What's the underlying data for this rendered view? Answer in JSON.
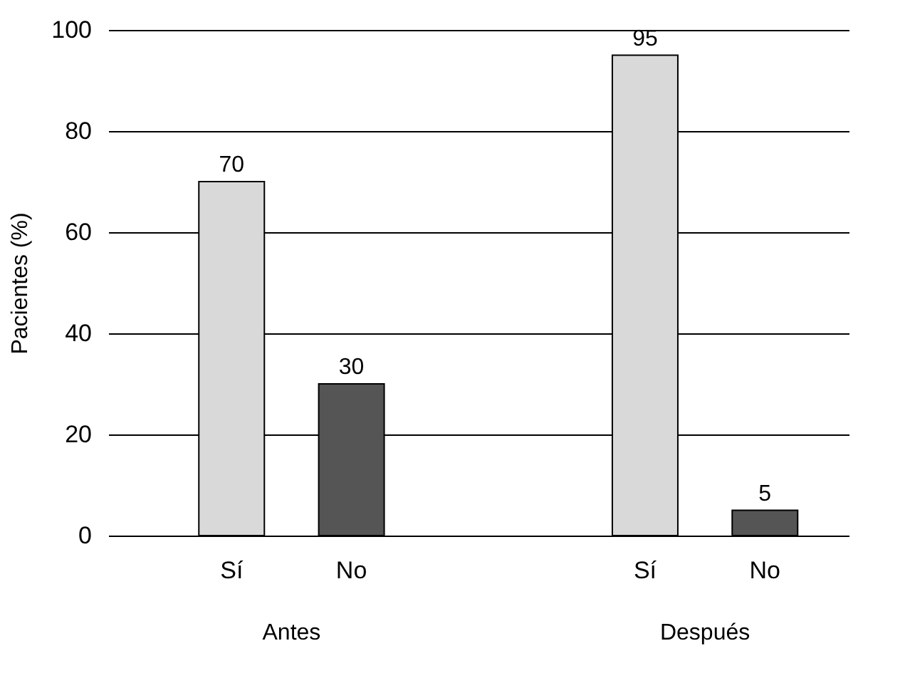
{
  "chart_data": {
    "type": "bar",
    "ylabel": "Pacientes (%)",
    "categories": [
      "Sí",
      "No",
      "Sí",
      "No"
    ],
    "values": [
      70,
      30,
      95,
      5
    ],
    "colors": [
      "#d9d9d9",
      "#555555",
      "#d9d9d9",
      "#555555"
    ],
    "ylim": [
      0,
      100
    ],
    "yticks": [
      0,
      20,
      40,
      60,
      80,
      100
    ],
    "grid": "y",
    "data_labels": true,
    "annotations": [
      "Antes",
      "Después"
    ]
  }
}
